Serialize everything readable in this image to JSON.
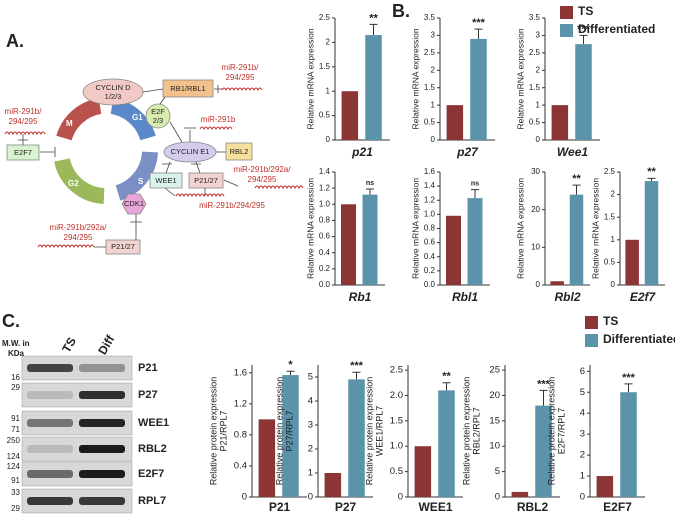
{
  "panels": [
    "A.",
    "B.",
    "C."
  ],
  "legends": [
    {
      "series": [
        {
          "name": "TS",
          "color": "#8b3535"
        },
        {
          "name": "Differentiated",
          "color": "#5a93aa"
        }
      ]
    },
    {
      "series": [
        {
          "name": "TS",
          "color": "#8b3535"
        },
        {
          "name": "Differentiated",
          "color": "#5a93aa"
        }
      ]
    }
  ],
  "diagram": {
    "phases": [
      "M",
      "G1",
      "S",
      "G2"
    ],
    "nodes": [
      [
        "CYCLIN D",
        "1/2/3"
      ],
      [
        "RB1/RBL1"
      ],
      [
        "E2F",
        "2/3"
      ],
      [
        "CYCLIN E1"
      ],
      [
        "RBL2"
      ],
      [
        "WEE1"
      ],
      [
        "P21/27"
      ],
      [
        "CDK1"
      ],
      [
        "P21/27"
      ],
      [
        "E2F7"
      ]
    ],
    "mirnas": [
      [
        "miR-291b/",
        "294/295"
      ],
      [
        "miR-291b"
      ],
      [
        "miR-291b/292a/",
        "294/295"
      ],
      [
        "miR-291b/294/295"
      ],
      [
        "miR-291b/292a/",
        "294/295"
      ],
      [
        "miR-291b/",
        "294/295"
      ]
    ]
  },
  "blot": {
    "header": [
      "M.W. in",
      "KDa"
    ],
    "lanes": [
      "TS",
      "Diff"
    ],
    "proteins": [
      "P21",
      "P27",
      "WEE1",
      "RBL2",
      "E2F7",
      "RPL7"
    ],
    "markers": [
      "16",
      "29",
      "91",
      "71",
      "250",
      "124",
      "124",
      "91",
      "33",
      "29"
    ]
  },
  "chart_data": [
    {
      "type": "bar",
      "xlabel": "p21",
      "ylabel": "Relative mRNA expression",
      "values": [
        1,
        2.15
      ],
      "errors": [
        null,
        0.22
      ],
      "significance": "**",
      "colors": [
        "#8b3535",
        "#5a93aa"
      ],
      "ylim": [
        0,
        2.5
      ],
      "yticks": [
        0,
        0.5,
        1,
        1.5,
        2,
        2.5
      ]
    },
    {
      "type": "bar",
      "xlabel": "p27",
      "ylabel": "Relative mRNA expression",
      "values": [
        1,
        2.9
      ],
      "errors": [
        null,
        0.28
      ],
      "significance": "***",
      "colors": [
        "#8b3535",
        "#5a93aa"
      ],
      "ylim": [
        0,
        3.5
      ],
      "yticks": [
        0,
        0.5,
        1,
        1.5,
        2,
        2.5,
        3,
        3.5
      ]
    },
    {
      "type": "bar",
      "xlabel": "Wee1",
      "ylabel": "Relative mRNA expression",
      "values": [
        1,
        2.75
      ],
      "errors": [
        null,
        0.25
      ],
      "significance": "***",
      "colors": [
        "#8b3535",
        "#5a93aa"
      ],
      "ylim": [
        0,
        3.5
      ],
      "yticks": [
        0,
        0.5,
        1,
        1.5,
        2,
        2.5,
        3,
        3.5
      ]
    },
    {
      "type": "bar",
      "xlabel": "Rb1",
      "ylabel": "Relative mRNA expression",
      "values": [
        1,
        1.12
      ],
      "errors": [
        null,
        0.07
      ],
      "significance": "ns",
      "colors": [
        "#8b3535",
        "#5a93aa"
      ],
      "ylim": [
        0,
        1.4
      ],
      "yticks": [
        {
          "value": 0,
          "label": "0.0"
        },
        0.2,
        0.4,
        0.6,
        0.8,
        {
          "value": 1,
          "label": "1.0"
        },
        1.2,
        1.4
      ]
    },
    {
      "type": "bar",
      "xlabel": "Rbl1",
      "ylabel": "Relative mRNA expression",
      "values": [
        0.98,
        1.23
      ],
      "errors": [
        null,
        0.12
      ],
      "significance": "ns",
      "colors": [
        "#8b3535",
        "#5a93aa"
      ],
      "ylim": [
        0,
        1.6
      ],
      "yticks": [
        {
          "value": 0,
          "label": "0.0"
        },
        0.2,
        0.4,
        0.6,
        0.8,
        {
          "value": 1,
          "label": "1.0"
        },
        1.2,
        1.4,
        1.6
      ]
    },
    {
      "type": "bar",
      "xlabel": "Rbl2",
      "ylabel": "Relative mRNA expression",
      "values": [
        1,
        24
      ],
      "errors": [
        null,
        2.5
      ],
      "significance": "**",
      "colors": [
        "#8b3535",
        "#5a93aa"
      ],
      "ylim": [
        0,
        30
      ],
      "yticks": [
        0,
        10,
        20,
        30
      ]
    },
    {
      "type": "bar",
      "xlabel": "E2f7",
      "ylabel": "Relative mRNA expression",
      "values": [
        1,
        2.3
      ],
      "errors": [
        null,
        0.06
      ],
      "significance": "**",
      "colors": [
        "#8b3535",
        "#5a93aa"
      ],
      "ylim": [
        0,
        2.5
      ],
      "yticks": [
        0,
        0.5,
        1,
        1.5,
        2,
        2.5
      ]
    },
    {
      "type": "bar",
      "xlabel": "P21",
      "ylabel": "Relative protein expression",
      "ylabel2": "P21/RPL7",
      "values": [
        1,
        1.57
      ],
      "errors": [
        null,
        0.05
      ],
      "significance": "*",
      "colors": [
        "#8b3535",
        "#5a93aa"
      ],
      "ylim": [
        0,
        1.7
      ],
      "yticks": [
        0,
        0.4,
        0.8,
        1.2,
        1.6
      ]
    },
    {
      "type": "bar",
      "xlabel": "P27",
      "ylabel": "Relative protein expression",
      "ylabel2": "P27/RPL7",
      "values": [
        1,
        4.9
      ],
      "errors": [
        null,
        0.3
      ],
      "significance": "***",
      "colors": [
        "#8b3535",
        "#5a93aa"
      ],
      "ylim": [
        0,
        5.5
      ],
      "yticks": [
        0,
        1,
        2,
        3,
        4,
        5
      ]
    },
    {
      "type": "bar",
      "xlabel": "WEE1",
      "ylabel": "Relative protein expression",
      "ylabel2": "WEE1/RPL7",
      "values": [
        1,
        2.1
      ],
      "errors": [
        null,
        0.15
      ],
      "significance": "**",
      "colors": [
        "#8b3535",
        "#5a93aa"
      ],
      "ylim": [
        0,
        2.6
      ],
      "yticks": [
        0,
        0.5,
        {
          "value": 1,
          "label": "1.0"
        },
        1.5,
        {
          "value": 2,
          "label": "2.0"
        },
        2.5
      ]
    },
    {
      "type": "bar",
      "xlabel": "RBL2",
      "ylabel": "Relative protein expression",
      "ylabel2": "RBL2/RPL7",
      "values": [
        1,
        18
      ],
      "errors": [
        null,
        3
      ],
      "significance": "***",
      "colors": [
        "#8b3535",
        "#5a93aa"
      ],
      "ylim": [
        0,
        26
      ],
      "yticks": [
        0,
        5,
        10,
        15,
        20,
        25
      ]
    },
    {
      "type": "bar",
      "xlabel": "E2F7",
      "ylabel": "Relative protein expression",
      "ylabel2": "E2F7/RPL7",
      "values": [
        1,
        5
      ],
      "errors": [
        null,
        0.4
      ],
      "significance": "***",
      "colors": [
        "#8b3535",
        "#5a93aa"
      ],
      "ylim": [
        0,
        6.3
      ],
      "yticks": [
        0,
        1,
        2,
        3,
        4,
        5,
        6
      ]
    }
  ]
}
